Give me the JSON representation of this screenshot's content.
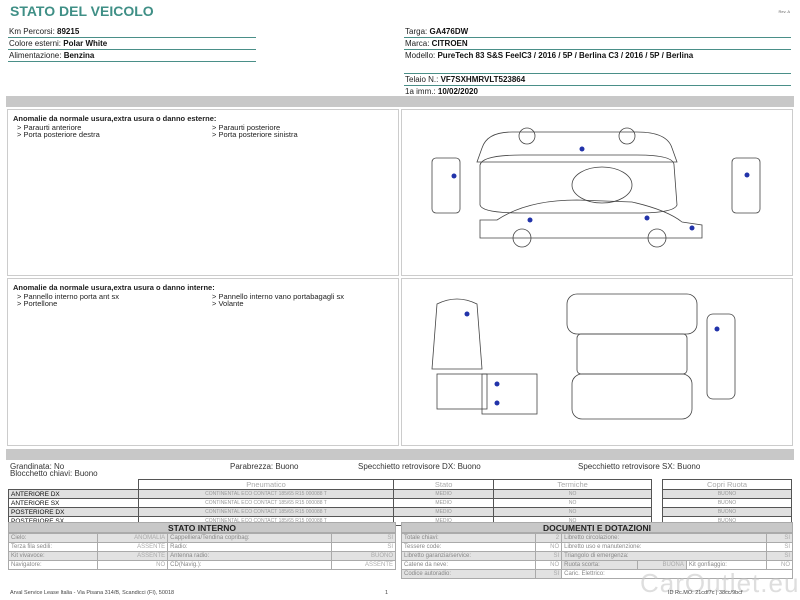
{
  "header": {
    "title": "STATO DEL VEICOLO",
    "rev": "Rev. A"
  },
  "vehicle_left": [
    {
      "label": "Km Percorsi: ",
      "value": "89215"
    },
    {
      "label": "Colore esterni: ",
      "value": "Polar White"
    },
    {
      "label": "Alimentazione: ",
      "value": "Benzina"
    }
  ],
  "vehicle_right": [
    {
      "label": "Targa: ",
      "value": "GA476DW"
    },
    {
      "label": "Marca: ",
      "value": "CITROEN"
    },
    {
      "label": "Modello: ",
      "value": "PureTech 83 S&S FeelC3 / 2016 / 5P / Berlina C3 / 2016 / 5P / Berlina"
    },
    {
      "label": "Telaio N.: ",
      "value": "VF7SXHMRVLT523864"
    },
    {
      "label": "1a imm.: ",
      "value": "10/02/2020"
    }
  ],
  "external": {
    "title": "Anomalie da normale usura,extra usura o danno esterne:",
    "items": [
      "> Paraurti anteriore",
      "> Paraurti posteriore",
      "> Porta posteriore destra",
      "> Porta posteriore sinistra"
    ]
  },
  "internal": {
    "title": "Anomalie da normale usura,extra usura o danno interne:",
    "items": [
      "> Pannello interno porta ant sx",
      "> Pannello interno vano portabagagli sx",
      "> Portellone",
      "> Volante"
    ]
  },
  "checks": {
    "grandinata": "Grandinata: No",
    "parabrezza": "Parabrezza: Buono",
    "specchio_dx": "Specchietto retrovisore DX: Buono",
    "specchio_sx": "Specchietto retrovisore SX: Buono",
    "blocchetto": "Blocchetto chiavi: Buono"
  },
  "tires": {
    "headers": [
      "Pneumatico",
      "Stato",
      "Termiche",
      "Copri Ruota"
    ],
    "rows": [
      {
        "pos": "ANTERIORE DX",
        "tire": "CONTINENTAL ECO CONTACT 185/65 R15 000088 T",
        "stato": "MEDIO",
        "termiche": "NO",
        "copri": "BUONO"
      },
      {
        "pos": "ANTERIORE SX",
        "tire": "CONTINENTAL ECO CONTACT 185/65 R15 000088 T",
        "stato": "MEDIO",
        "termiche": "NO",
        "copri": "BUONO"
      },
      {
        "pos": "POSTERIORE DX",
        "tire": "CONTINENTAL ECO CONTACT 185/65 R15 000088 T",
        "stato": "MEDIO",
        "termiche": "NO",
        "copri": "BUONO"
      },
      {
        "pos": "POSTERIORE SX",
        "tire": "CONTINENTAL ECO CONTACT 185/65 R15 000088 T",
        "stato": "MEDIO",
        "termiche": "NO",
        "copri": "BUONO"
      }
    ]
  },
  "stato_interno": {
    "title": "STATO INTERNO",
    "rows": [
      [
        "Cielo:",
        "ANOMALIA",
        "Cappelliera/Tendina copribag:",
        "SI"
      ],
      [
        "Terza fila sedili:",
        "ASSENTE",
        "Radio:",
        "SI"
      ],
      [
        "Kit vivavoce:",
        "ASSENTE",
        "Antenna radio:",
        "BUONO"
      ],
      [
        "Navigatore:",
        "NO",
        "CD(Navig.):",
        "ASSENTE"
      ]
    ]
  },
  "documenti": {
    "title": "DOCUMENTI E DOTAZIONI",
    "rows": [
      [
        "Totale chiavi:",
        "2",
        "Libretto circolazione:",
        "SI"
      ],
      [
        "Tessere code:",
        "NO",
        "Libretto uso e manutenzione:",
        "SI"
      ],
      [
        "Libretto garanzia/service:",
        "SI",
        "Triangolo di emergenza:",
        "SI"
      ],
      [
        "Catene da neve:",
        "NO",
        "Ruota scorta:",
        "BUONA",
        "Kit gonfiaggio:",
        "NO"
      ],
      [
        "Codice autoradio:",
        "SI",
        "Caric. Elettrico:",
        ""
      ]
    ]
  },
  "footer": {
    "address": "Arval Service Lease Italia - Via Pisana 314/B, Scandicci (FI), 50018",
    "page": "1",
    "id": "ID Rc.MO: 21cdf7c | 38cc/9bcf"
  },
  "watermark": "CarOutlet.eu"
}
